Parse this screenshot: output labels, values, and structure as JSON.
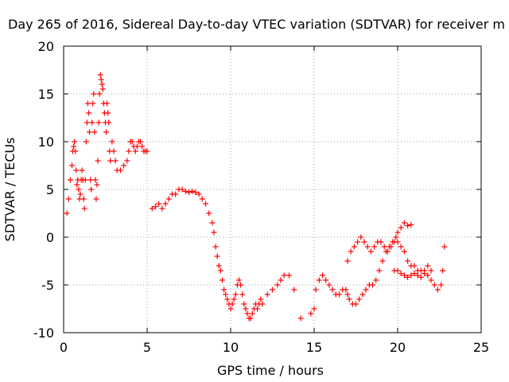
{
  "chart_data": {
    "type": "scatter",
    "title": "Day 265 of 2016, Sidereal Day-to-day VTEC variation (SDTVAR) for receiver m",
    "xlabel": "GPS time / hours",
    "ylabel": "SDTVAR / TECUs",
    "xlim": [
      0,
      25
    ],
    "ylim": [
      -10,
      20
    ],
    "xticks": [
      "0",
      "5",
      "10",
      "15",
      "20",
      "25"
    ],
    "yticks": [
      "-10",
      "-5",
      "0",
      "5",
      "10",
      "15",
      "20"
    ],
    "grid": true,
    "marker": "+",
    "color": "#ff0000",
    "series": [
      {
        "x": [
          0.2,
          0.3,
          0.4,
          0.5,
          0.55,
          0.6,
          0.65,
          0.7,
          0.75,
          0.8,
          0.85,
          0.9,
          0.95,
          1.0,
          1.05,
          1.1,
          1.15,
          1.2,
          1.25,
          1.3,
          1.35,
          1.4,
          1.45,
          1.5,
          1.55,
          1.6,
          1.65,
          1.7,
          1.75,
          1.8,
          1.85,
          1.9,
          1.95,
          2.0,
          2.05,
          2.1,
          2.15,
          2.2,
          2.25,
          2.3,
          2.35,
          2.4,
          2.45,
          2.5,
          2.55,
          2.6,
          2.65,
          2.7,
          2.75,
          2.8,
          2.9,
          3.0,
          3.1,
          3.2,
          3.4,
          3.6,
          3.8,
          3.9,
          4.0,
          4.1,
          4.2,
          4.3,
          4.4,
          4.5,
          4.6,
          4.7,
          4.8,
          4.9,
          5.0
        ],
        "y": [
          2.5,
          4.0,
          6.0,
          7.5,
          9.0,
          9.5,
          10.0,
          9.0,
          7.0,
          5.5,
          6.0,
          5.0,
          4.0,
          4.5,
          6.0,
          7.0,
          6.0,
          4.0,
          3.0,
          6.0,
          10.0,
          12.0,
          14.0,
          13.0,
          11.0,
          6.0,
          5.0,
          12.0,
          14.0,
          15.0,
          11.0,
          6.0,
          4.0,
          5.5,
          8.0,
          12.0,
          15.0,
          17.0,
          16.5,
          16.0,
          15.5,
          14.0,
          13.0,
          12.0,
          11.0,
          14.0,
          13.0,
          12.0,
          9.0,
          8.0,
          10.0,
          9.0,
          8.0,
          7.0,
          7.0,
          7.5,
          8.0,
          9.0,
          10.0,
          10.0,
          9.5,
          9.0,
          9.5,
          10.0,
          10.0,
          9.5,
          9.0,
          9.0,
          9.0
        ]
      },
      {
        "x": [
          5.3,
          5.5,
          5.7,
          5.9,
          6.1,
          6.3,
          6.5,
          6.7,
          6.9,
          7.1,
          7.3,
          7.5,
          7.7,
          7.9,
          8.1,
          8.3,
          8.5,
          8.7,
          8.9,
          9.0,
          9.1,
          9.2,
          9.3,
          9.4,
          9.5,
          9.6,
          9.7,
          9.8,
          9.9,
          10.0,
          10.1,
          10.2,
          10.3,
          10.4,
          10.5,
          10.6,
          10.7,
          10.8,
          10.9,
          11.0,
          11.1,
          11.2,
          11.3,
          11.4,
          11.5,
          11.6,
          11.7,
          11.8,
          11.9,
          12.2,
          12.5,
          12.8,
          13.0,
          13.2,
          13.5,
          13.8,
          14.2,
          14.8,
          15.0,
          15.1,
          15.3,
          15.5,
          15.7,
          15.9,
          16.1,
          16.3,
          16.5,
          16.7,
          16.9,
          17.0,
          17.1,
          17.3,
          17.5,
          17.7,
          17.9,
          18.1,
          18.3,
          18.5,
          18.7,
          18.9,
          19.1,
          19.3,
          19.5,
          19.7,
          19.9,
          20.0,
          20.2,
          20.4,
          20.6,
          20.8
        ],
        "y": [
          3.0,
          3.2,
          3.5,
          3.0,
          3.5,
          4.0,
          4.5,
          4.5,
          5.0,
          5.0,
          4.8,
          4.7,
          4.8,
          4.7,
          4.5,
          4.0,
          3.5,
          2.5,
          1.5,
          0.5,
          -1.0,
          -2.0,
          -3.0,
          -3.5,
          -4.5,
          -5.5,
          -6.0,
          -6.5,
          -7.0,
          -7.5,
          -7.0,
          -6.5,
          -6.0,
          -5.0,
          -4.5,
          -5.0,
          -6.0,
          -7.0,
          -7.5,
          -8.0,
          -8.5,
          -8.5,
          -8.0,
          -7.5,
          -7.0,
          -7.5,
          -7.0,
          -6.5,
          -7.0,
          -6.0,
          -5.5,
          -5.0,
          -4.5,
          -4.0,
          -4.0,
          -5.5,
          -8.5,
          -8.0,
          -7.5,
          -5.5,
          -4.5,
          -4.0,
          -4.5,
          -5.0,
          -5.5,
          -6.0,
          -6.0,
          -5.5,
          -5.5,
          -6.0,
          -6.5,
          -7.0,
          -7.0,
          -6.5,
          -6.0,
          -5.5,
          -5.0,
          -5.0,
          -4.5,
          -3.5,
          -2.5,
          -1.5,
          -1.0,
          -0.5,
          0.0,
          0.5,
          1.0,
          1.5,
          1.2,
          1.3
        ]
      },
      {
        "x": [
          17.0,
          17.2,
          17.4,
          17.6,
          17.8,
          18.0,
          18.2,
          18.4,
          18.6,
          18.8,
          19.0,
          19.2,
          19.4,
          19.6,
          19.8,
          20.0,
          20.2,
          20.4,
          20.6,
          20.8,
          21.0,
          21.2,
          21.4,
          21.6,
          21.8,
          22.0,
          22.2,
          22.4,
          22.6,
          22.7,
          22.8
        ],
        "y": [
          -2.5,
          -1.5,
          -1.0,
          -0.5,
          0.0,
          -0.5,
          -1.0,
          -1.5,
          -1.0,
          -0.5,
          -0.5,
          -1.0,
          -1.5,
          -1.0,
          -0.5,
          -0.5,
          -1.0,
          -1.5,
          -2.5,
          -3.0,
          -3.0,
          -3.5,
          -3.5,
          -3.8,
          -4.0,
          -4.5,
          -5.0,
          -5.5,
          -5.0,
          -3.5,
          -1.0
        ]
      },
      {
        "x": [
          19.8,
          20.0,
          20.2,
          20.4,
          20.6,
          20.8,
          21.0,
          21.2,
          21.4,
          21.6,
          21.8,
          22.0
        ],
        "y": [
          -3.5,
          -3.5,
          -3.8,
          -4.0,
          -4.2,
          -4.0,
          -3.8,
          -4.0,
          -4.2,
          -3.5,
          -3.0,
          -3.5
        ]
      }
    ]
  }
}
